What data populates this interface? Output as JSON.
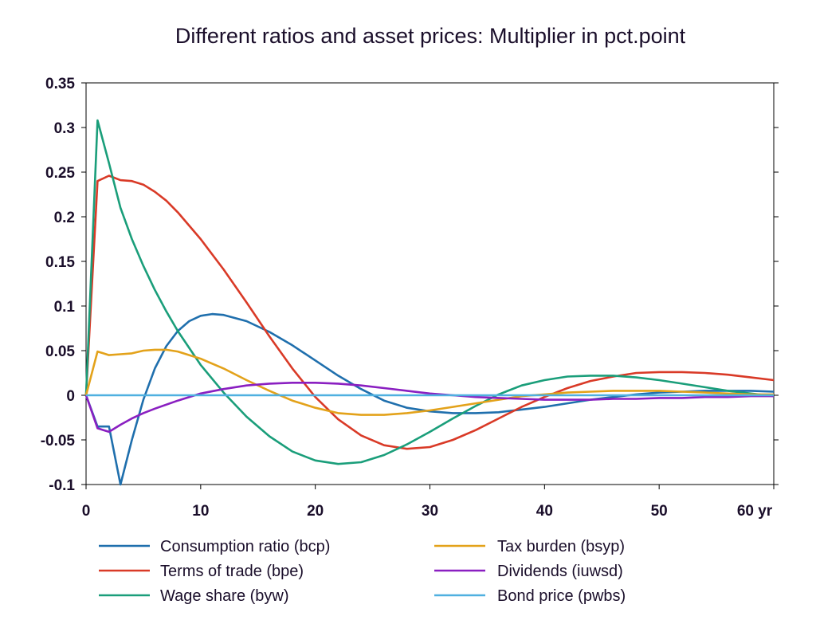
{
  "chart_data": {
    "type": "line",
    "title": "Different ratios and asset prices: Multiplier in pct.point",
    "xlabel": "",
    "ylabel": "",
    "x_unit_label": "yr",
    "xlim": [
      0,
      60
    ],
    "ylim": [
      -0.1,
      0.35
    ],
    "x_ticks": [
      0,
      10,
      20,
      30,
      40,
      50,
      60
    ],
    "x_tick_labels": [
      "0",
      "10",
      "20",
      "30",
      "40",
      "50",
      "60 yr"
    ],
    "y_ticks": [
      -0.1,
      -0.05,
      0,
      0.05,
      0.1,
      0.15,
      0.2,
      0.25,
      0.3,
      0.35
    ],
    "y_tick_labels": [
      "-0.1",
      "-0.05",
      "0",
      "0.05",
      "0.1",
      "0.15",
      "0.2",
      "0.25",
      "0.3",
      "0.35"
    ],
    "grid": false,
    "legend_position": "bottom",
    "series": [
      {
        "name": "Consumption ratio (bcp)",
        "color": "#1f6fad",
        "x": [
          0,
          1,
          2,
          3,
          4,
          5,
          6,
          7,
          8,
          9,
          10,
          11,
          12,
          14,
          16,
          18,
          20,
          22,
          24,
          26,
          28,
          30,
          32,
          34,
          36,
          38,
          40,
          42,
          44,
          46,
          48,
          50,
          52,
          54,
          56,
          58,
          60
        ],
        "y": [
          0,
          -0.035,
          -0.035,
          -0.1,
          -0.05,
          -0.005,
          0.03,
          0.055,
          0.072,
          0.083,
          0.089,
          0.091,
          0.09,
          0.083,
          0.071,
          0.056,
          0.039,
          0.022,
          0.007,
          -0.006,
          -0.014,
          -0.018,
          -0.02,
          -0.02,
          -0.019,
          -0.016,
          -0.013,
          -0.009,
          -0.005,
          -0.002,
          0.001,
          0.003,
          0.004,
          0.005,
          0.005,
          0.005,
          0.004
        ]
      },
      {
        "name": "Terms of trade (bpe)",
        "color": "#d93a27",
        "x": [
          0,
          1,
          2,
          3,
          4,
          5,
          6,
          7,
          8,
          10,
          12,
          14,
          16,
          18,
          20,
          22,
          24,
          26,
          28,
          30,
          32,
          34,
          36,
          38,
          40,
          42,
          44,
          46,
          48,
          50,
          52,
          54,
          56,
          58,
          60
        ],
        "y": [
          0,
          0.24,
          0.246,
          0.241,
          0.24,
          0.236,
          0.228,
          0.218,
          0.205,
          0.175,
          0.141,
          0.104,
          0.066,
          0.03,
          -0.002,
          -0.027,
          -0.045,
          -0.056,
          -0.06,
          -0.058,
          -0.05,
          -0.039,
          -0.026,
          -0.013,
          -0.002,
          0.008,
          0.016,
          0.021,
          0.025,
          0.026,
          0.026,
          0.025,
          0.023,
          0.02,
          0.017
        ]
      },
      {
        "name": "Wage share (byw)",
        "color": "#1a9e7a",
        "x": [
          0,
          1,
          2,
          3,
          4,
          5,
          6,
          7,
          8,
          10,
          12,
          14,
          16,
          18,
          20,
          22,
          24,
          26,
          28,
          30,
          32,
          34,
          36,
          38,
          40,
          42,
          44,
          46,
          48,
          50,
          52,
          54,
          56,
          58,
          60
        ],
        "y": [
          0,
          0.308,
          0.26,
          0.21,
          0.175,
          0.145,
          0.118,
          0.094,
          0.072,
          0.034,
          0.003,
          -0.024,
          -0.046,
          -0.063,
          -0.073,
          -0.077,
          -0.075,
          -0.067,
          -0.055,
          -0.041,
          -0.026,
          -0.012,
          0.001,
          0.011,
          0.017,
          0.021,
          0.022,
          0.022,
          0.02,
          0.017,
          0.013,
          0.009,
          0.005,
          0.002,
          -0.001
        ]
      },
      {
        "name": "Tax burden (bsyp)",
        "color": "#e3a21a",
        "x": [
          0,
          1,
          2,
          3,
          4,
          5,
          6,
          7,
          8,
          10,
          12,
          14,
          16,
          18,
          20,
          22,
          24,
          26,
          28,
          30,
          32,
          34,
          36,
          38,
          40,
          42,
          44,
          46,
          48,
          50,
          52,
          54,
          56,
          58,
          60
        ],
        "y": [
          0,
          0.049,
          0.045,
          0.046,
          0.047,
          0.05,
          0.051,
          0.051,
          0.049,
          0.041,
          0.03,
          0.017,
          0.005,
          -0.006,
          -0.014,
          -0.02,
          -0.022,
          -0.022,
          -0.02,
          -0.017,
          -0.013,
          -0.009,
          -0.005,
          -0.001,
          0.001,
          0.003,
          0.004,
          0.005,
          0.005,
          0.005,
          0.004,
          0.003,
          0.002,
          0.001,
          0.001
        ]
      },
      {
        "name": "Dividends (iuwsd)",
        "color": "#8a1fc1",
        "x": [
          0,
          1,
          2,
          3,
          4,
          5,
          6,
          8,
          10,
          12,
          14,
          16,
          18,
          20,
          22,
          24,
          26,
          28,
          30,
          32,
          34,
          36,
          38,
          40,
          42,
          44,
          46,
          48,
          50,
          52,
          54,
          56,
          58,
          60
        ],
        "y": [
          0,
          -0.037,
          -0.041,
          -0.033,
          -0.026,
          -0.02,
          -0.015,
          -0.006,
          0.002,
          0.007,
          0.011,
          0.013,
          0.014,
          0.014,
          0.013,
          0.011,
          0.008,
          0.005,
          0.002,
          0.0,
          -0.002,
          -0.003,
          -0.004,
          -0.005,
          -0.005,
          -0.005,
          -0.004,
          -0.004,
          -0.003,
          -0.003,
          -0.002,
          -0.002,
          -0.001,
          -0.001
        ]
      },
      {
        "name": "Bond price (pwbs)",
        "color": "#4fb0e0",
        "x": [
          0,
          10,
          20,
          30,
          40,
          50,
          60
        ],
        "y": [
          0,
          0,
          0,
          0,
          0,
          0,
          0
        ]
      }
    ]
  }
}
